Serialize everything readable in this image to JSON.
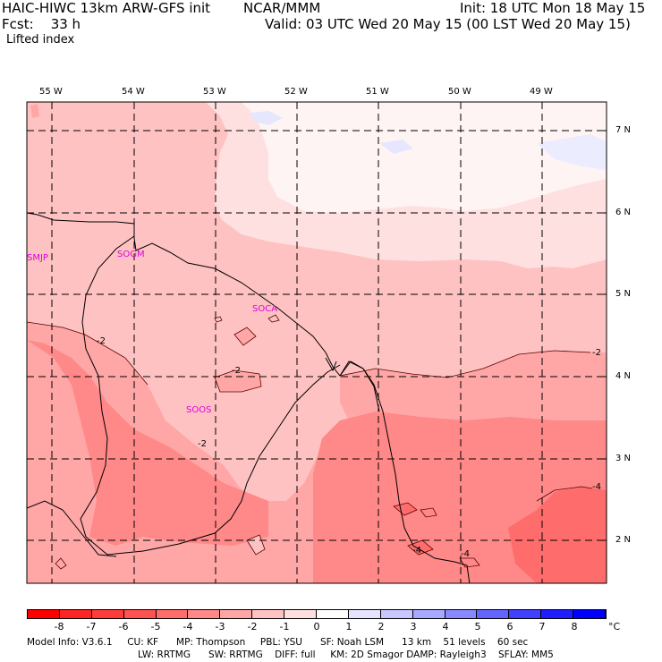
{
  "header": {
    "model": "HAIC-HIWC 13km ARW-GFS init",
    "org": "NCAR/MMM",
    "init": "Init: 18 UTC Mon 18 May 15",
    "fcst": "Fcst:    33 h",
    "valid": "Valid: 03 UTC Wed 20 May 15 (00 LST Wed 20 May 15)",
    "field": "Lifted index"
  },
  "map": {
    "lon_labels": [
      "55 W",
      "54 W",
      "53 W",
      "52 W",
      "51 W",
      "50 W",
      "49 W"
    ],
    "lat_labels": [
      "7 N",
      "6 N",
      "5 N",
      "4 N",
      "3 N",
      "2 N"
    ],
    "stations": [
      "SMJP",
      "SOGM",
      "SOCA",
      "SOOS"
    ],
    "contour_labels": [
      "-2",
      "-2",
      "-2",
      "-2",
      "-4",
      "-4",
      "-4"
    ]
  },
  "colorbar": {
    "labels": [
      "-8",
      "-7",
      "-6",
      "-5",
      "-4",
      "-3",
      "-2",
      "-1",
      "0",
      "1",
      "2",
      "3",
      "4",
      "5",
      "6",
      "7",
      "8"
    ],
    "unit": "°C",
    "colors": [
      "#ff0000",
      "#ff2424",
      "#ff3c3c",
      "#ff5252",
      "#ff6c6c",
      "#ff8888",
      "#ffa6a6",
      "#ffc2c2",
      "#ffe0e0",
      "#ffffff",
      "#e4e4ff",
      "#c8c8ff",
      "#a8a8ff",
      "#8888ff",
      "#6464ff",
      "#4040ff",
      "#1e1eff",
      "#0000ff"
    ]
  },
  "model_info": {
    "line1": "Model Info: V3.6.1     CU: KF      MP: Thompson     PBL: YSU      SF: Noah LSM      13 km    51 levels    60 sec",
    "line2": "LW: RRTMG      SW: RRTMG    DIFF: full     KM: 2D Smagor DAMP: Rayleigh3    SFLAY: MM5"
  }
}
